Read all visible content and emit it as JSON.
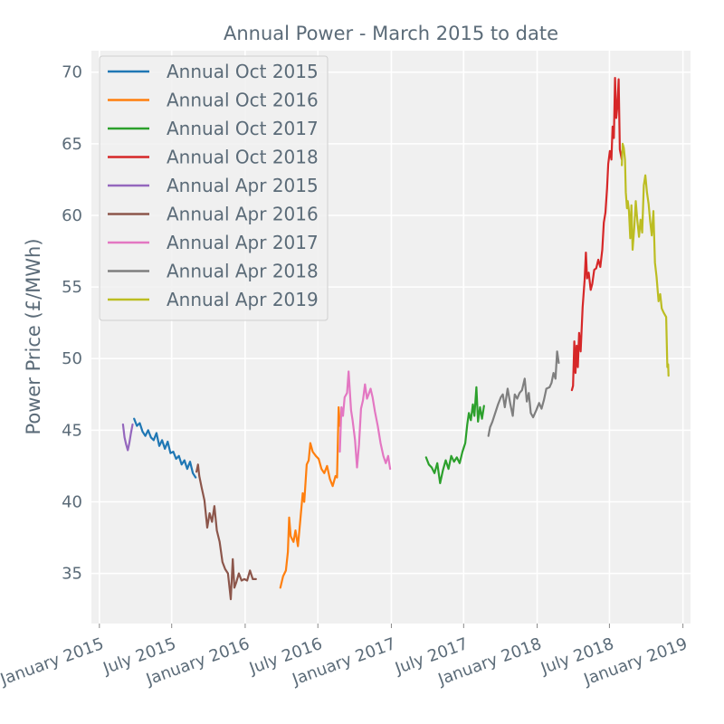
{
  "chart_data": {
    "type": "line",
    "title": "Annual Power - March 2015 to date",
    "xlabel": "",
    "ylabel": "Power Price (£/MWh)",
    "ylim": [
      31.5,
      71.5
    ],
    "yticks": [
      35,
      40,
      45,
      50,
      55,
      60,
      65,
      70
    ],
    "xlim": [
      "2014-12-12",
      "2019-01-20"
    ],
    "xticks": [
      {
        "date": "2015-01-01",
        "label": "January 2015"
      },
      {
        "date": "2015-07-01",
        "label": "July 2015"
      },
      {
        "date": "2016-01-01",
        "label": "January 2016"
      },
      {
        "date": "2016-07-01",
        "label": "July 2016"
      },
      {
        "date": "2017-01-01",
        "label": "January 2017"
      },
      {
        "date": "2017-07-01",
        "label": "July 2017"
      },
      {
        "date": "2018-01-01",
        "label": "January 2018"
      },
      {
        "date": "2018-07-01",
        "label": "July 2018"
      },
      {
        "date": "2019-01-01",
        "label": "January 2019"
      }
    ],
    "grid": true,
    "legend_position": "top-left",
    "series": [
      {
        "name": "Annual Oct 2015",
        "color": "#1f77b4",
        "points": [
          [
            "2015-03-29",
            45.8
          ],
          [
            "2015-04-05",
            45.3
          ],
          [
            "2015-04-12",
            45.5
          ],
          [
            "2015-04-19",
            44.9
          ],
          [
            "2015-04-26",
            44.6
          ],
          [
            "2015-05-03",
            45.0
          ],
          [
            "2015-05-10",
            44.5
          ],
          [
            "2015-05-17",
            44.3
          ],
          [
            "2015-05-24",
            44.8
          ],
          [
            "2015-05-31",
            43.9
          ],
          [
            "2015-06-07",
            44.3
          ],
          [
            "2015-06-14",
            43.7
          ],
          [
            "2015-06-21",
            44.2
          ],
          [
            "2015-06-28",
            43.4
          ],
          [
            "2015-07-05",
            43.5
          ],
          [
            "2015-07-12",
            43.0
          ],
          [
            "2015-07-19",
            43.2
          ],
          [
            "2015-07-26",
            42.6
          ],
          [
            "2015-08-02",
            42.9
          ],
          [
            "2015-08-09",
            42.3
          ],
          [
            "2015-08-16",
            42.8
          ],
          [
            "2015-08-23",
            42.0
          ],
          [
            "2015-08-30",
            41.7
          ]
        ]
      },
      {
        "name": "Annual Oct 2016",
        "color": "#ff7f0e",
        "points": [
          [
            "2016-03-29",
            34.0
          ],
          [
            "2016-04-05",
            34.8
          ],
          [
            "2016-04-12",
            35.2
          ],
          [
            "2016-04-17",
            36.5
          ],
          [
            "2016-04-20",
            38.9
          ],
          [
            "2016-04-24",
            37.6
          ],
          [
            "2016-05-01",
            37.2
          ],
          [
            "2016-05-06",
            38.0
          ],
          [
            "2016-05-12",
            36.9
          ],
          [
            "2016-05-18",
            38.7
          ],
          [
            "2016-05-24",
            40.6
          ],
          [
            "2016-05-28",
            40.0
          ],
          [
            "2016-06-03",
            42.6
          ],
          [
            "2016-06-08",
            42.9
          ],
          [
            "2016-06-12",
            44.1
          ],
          [
            "2016-06-18",
            43.5
          ],
          [
            "2016-06-26",
            43.2
          ],
          [
            "2016-07-03",
            43.0
          ],
          [
            "2016-07-10",
            42.3
          ],
          [
            "2016-07-17",
            42.0
          ],
          [
            "2016-07-24",
            42.5
          ],
          [
            "2016-07-31",
            41.6
          ],
          [
            "2016-08-07",
            41.1
          ],
          [
            "2016-08-14",
            41.8
          ],
          [
            "2016-08-18",
            41.7
          ],
          [
            "2016-08-22",
            46.6
          ],
          [
            "2016-08-25",
            45.3
          ]
        ]
      },
      {
        "name": "Annual Oct 2017",
        "color": "#2ca02c",
        "points": [
          [
            "2017-03-29",
            43.1
          ],
          [
            "2017-04-05",
            42.6
          ],
          [
            "2017-04-12",
            42.4
          ],
          [
            "2017-04-19",
            42.0
          ],
          [
            "2017-04-26",
            42.7
          ],
          [
            "2017-05-03",
            41.3
          ],
          [
            "2017-05-10",
            42.2
          ],
          [
            "2017-05-17",
            42.9
          ],
          [
            "2017-05-24",
            42.3
          ],
          [
            "2017-05-31",
            43.2
          ],
          [
            "2017-06-07",
            42.8
          ],
          [
            "2017-06-14",
            43.1
          ],
          [
            "2017-06-21",
            42.7
          ],
          [
            "2017-06-28",
            43.5
          ],
          [
            "2017-07-05",
            44.1
          ],
          [
            "2017-07-10",
            45.4
          ],
          [
            "2017-07-14",
            46.2
          ],
          [
            "2017-07-19",
            45.7
          ],
          [
            "2017-07-24",
            46.8
          ],
          [
            "2017-07-28",
            46.0
          ],
          [
            "2017-08-02",
            48.0
          ],
          [
            "2017-08-06",
            45.6
          ],
          [
            "2017-08-11",
            46.6
          ],
          [
            "2017-08-16",
            45.8
          ],
          [
            "2017-08-21",
            46.7
          ]
        ]
      },
      {
        "name": "Annual Oct 2018",
        "color": "#d62728",
        "points": [
          [
            "2018-03-29",
            47.8
          ],
          [
            "2018-04-01",
            48.1
          ],
          [
            "2018-04-04",
            51.2
          ],
          [
            "2018-04-07",
            49.0
          ],
          [
            "2018-04-10",
            50.9
          ],
          [
            "2018-04-13",
            49.4
          ],
          [
            "2018-04-16",
            51.8
          ],
          [
            "2018-04-20",
            50.5
          ],
          [
            "2018-04-25",
            53.6
          ],
          [
            "2018-04-30",
            55.5
          ],
          [
            "2018-05-03",
            57.4
          ],
          [
            "2018-05-06",
            55.6
          ],
          [
            "2018-05-10",
            56.0
          ],
          [
            "2018-05-15",
            54.8
          ],
          [
            "2018-05-19",
            55.2
          ],
          [
            "2018-05-24",
            56.2
          ],
          [
            "2018-05-29",
            56.3
          ],
          [
            "2018-06-03",
            56.9
          ],
          [
            "2018-06-08",
            56.4
          ],
          [
            "2018-06-13",
            57.6
          ],
          [
            "2018-06-17",
            59.5
          ],
          [
            "2018-06-21",
            60.2
          ],
          [
            "2018-06-25",
            61.9
          ],
          [
            "2018-06-28",
            63.6
          ],
          [
            "2018-07-02",
            64.5
          ],
          [
            "2018-07-06",
            63.9
          ],
          [
            "2018-07-09",
            66.2
          ],
          [
            "2018-07-12",
            65.4
          ],
          [
            "2018-07-15",
            69.6
          ],
          [
            "2018-07-18",
            66.8
          ],
          [
            "2018-07-21",
            67.6
          ],
          [
            "2018-07-24",
            69.5
          ],
          [
            "2018-07-27",
            64.6
          ],
          [
            "2018-08-01",
            63.9
          ]
        ]
      },
      {
        "name": "Annual Apr 2015",
        "color": "#9467bd",
        "points": [
          [
            "2015-03-01",
            45.4
          ],
          [
            "2015-03-05",
            44.5
          ],
          [
            "2015-03-09",
            44.0
          ],
          [
            "2015-03-13",
            43.6
          ],
          [
            "2015-03-17",
            44.1
          ],
          [
            "2015-03-21",
            44.8
          ],
          [
            "2015-03-25",
            45.4
          ]
        ]
      },
      {
        "name": "Annual Apr 2016",
        "color": "#8c564b",
        "points": [
          [
            "2015-09-01",
            42.1
          ],
          [
            "2015-09-05",
            42.6
          ],
          [
            "2015-09-08",
            41.8
          ],
          [
            "2015-09-14",
            41.0
          ],
          [
            "2015-09-21",
            40.1
          ],
          [
            "2015-09-28",
            38.2
          ],
          [
            "2015-10-04",
            39.2
          ],
          [
            "2015-10-10",
            38.6
          ],
          [
            "2015-10-16",
            39.7
          ],
          [
            "2015-10-22",
            38.0
          ],
          [
            "2015-10-29",
            37.2
          ],
          [
            "2015-11-05",
            35.8
          ],
          [
            "2015-11-12",
            35.3
          ],
          [
            "2015-11-19",
            35.0
          ],
          [
            "2015-11-26",
            33.2
          ],
          [
            "2015-12-01",
            36.0
          ],
          [
            "2015-12-05",
            34.0
          ],
          [
            "2015-12-10",
            34.4
          ],
          [
            "2015-12-16",
            35.0
          ],
          [
            "2015-12-23",
            34.5
          ],
          [
            "2015-12-30",
            34.6
          ],
          [
            "2016-01-06",
            34.5
          ],
          [
            "2016-01-13",
            35.2
          ],
          [
            "2016-01-20",
            34.6
          ],
          [
            "2016-01-28",
            34.6
          ]
        ]
      },
      {
        "name": "Annual Apr 2017",
        "color": "#e377c2",
        "points": [
          [
            "2016-08-25",
            43.5
          ],
          [
            "2016-08-29",
            46.6
          ],
          [
            "2016-09-02",
            46.0
          ],
          [
            "2016-09-06",
            47.3
          ],
          [
            "2016-09-12",
            47.6
          ],
          [
            "2016-09-16",
            49.1
          ],
          [
            "2016-09-22",
            46.4
          ],
          [
            "2016-09-26",
            45.7
          ],
          [
            "2016-10-02",
            44.3
          ],
          [
            "2016-10-07",
            42.4
          ],
          [
            "2016-10-12",
            44.0
          ],
          [
            "2016-10-17",
            46.5
          ],
          [
            "2016-10-22",
            47.1
          ],
          [
            "2016-10-27",
            48.2
          ],
          [
            "2016-11-01",
            47.2
          ],
          [
            "2016-11-05",
            47.5
          ],
          [
            "2016-11-10",
            47.9
          ],
          [
            "2016-11-15",
            47.3
          ],
          [
            "2016-11-21",
            46.3
          ],
          [
            "2016-11-28",
            45.3
          ],
          [
            "2016-12-05",
            44.1
          ],
          [
            "2016-12-12",
            43.2
          ],
          [
            "2016-12-18",
            42.7
          ],
          [
            "2016-12-24",
            43.2
          ],
          [
            "2016-12-29",
            42.3
          ]
        ]
      },
      {
        "name": "Annual Apr 2018",
        "color": "#7f7f7f",
        "points": [
          [
            "2017-09-01",
            44.6
          ],
          [
            "2017-09-05",
            45.2
          ],
          [
            "2017-09-11",
            45.6
          ],
          [
            "2017-09-18",
            46.2
          ],
          [
            "2017-09-25",
            46.8
          ],
          [
            "2017-10-02",
            47.3
          ],
          [
            "2017-10-07",
            47.5
          ],
          [
            "2017-10-12",
            46.6
          ],
          [
            "2017-10-19",
            47.9
          ],
          [
            "2017-10-26",
            46.8
          ],
          [
            "2017-11-01",
            46.0
          ],
          [
            "2017-11-06",
            47.5
          ],
          [
            "2017-11-12",
            47.2
          ],
          [
            "2017-11-18",
            47.6
          ],
          [
            "2017-11-24",
            47.8
          ],
          [
            "2017-12-01",
            48.6
          ],
          [
            "2017-12-06",
            47.0
          ],
          [
            "2017-12-11",
            47.6
          ],
          [
            "2017-12-16",
            46.2
          ],
          [
            "2017-12-22",
            45.9
          ],
          [
            "2017-12-30",
            46.4
          ],
          [
            "2018-01-06",
            46.9
          ],
          [
            "2018-01-12",
            46.5
          ],
          [
            "2018-01-18",
            47.1
          ],
          [
            "2018-01-24",
            47.9
          ],
          [
            "2018-02-01",
            48.0
          ],
          [
            "2018-02-06",
            48.3
          ],
          [
            "2018-02-11",
            49.0
          ],
          [
            "2018-02-16",
            48.6
          ],
          [
            "2018-02-20",
            50.5
          ],
          [
            "2018-02-24",
            49.7
          ]
        ]
      },
      {
        "name": "Annual Apr 2019",
        "color": "#bcbd22",
        "points": [
          [
            "2018-08-01",
            63.5
          ],
          [
            "2018-08-03",
            65.0
          ],
          [
            "2018-08-06",
            64.7
          ],
          [
            "2018-08-09",
            63.9
          ],
          [
            "2018-08-11",
            61.6
          ],
          [
            "2018-08-14",
            60.5
          ],
          [
            "2018-08-16",
            61.0
          ],
          [
            "2018-08-19",
            60.3
          ],
          [
            "2018-08-22",
            58.4
          ],
          [
            "2018-08-25",
            60.7
          ],
          [
            "2018-08-28",
            57.6
          ],
          [
            "2018-09-01",
            59.1
          ],
          [
            "2018-09-05",
            61.0
          ],
          [
            "2018-09-09",
            59.6
          ],
          [
            "2018-09-13",
            58.5
          ],
          [
            "2018-09-17",
            59.7
          ],
          [
            "2018-09-21",
            58.8
          ],
          [
            "2018-09-25",
            62.1
          ],
          [
            "2018-09-29",
            62.8
          ],
          [
            "2018-10-03",
            61.6
          ],
          [
            "2018-10-07",
            60.8
          ],
          [
            "2018-10-11",
            59.6
          ],
          [
            "2018-10-15",
            58.6
          ],
          [
            "2018-10-19",
            60.3
          ],
          [
            "2018-10-23",
            56.7
          ],
          [
            "2018-10-27",
            55.7
          ],
          [
            "2018-11-01",
            54.0
          ],
          [
            "2018-11-05",
            54.5
          ],
          [
            "2018-11-09",
            53.5
          ],
          [
            "2018-11-14",
            53.2
          ],
          [
            "2018-11-20",
            52.9
          ],
          [
            "2018-11-23",
            49.4
          ],
          [
            "2018-11-25",
            49.6
          ],
          [
            "2018-11-26",
            48.8
          ]
        ]
      }
    ]
  }
}
